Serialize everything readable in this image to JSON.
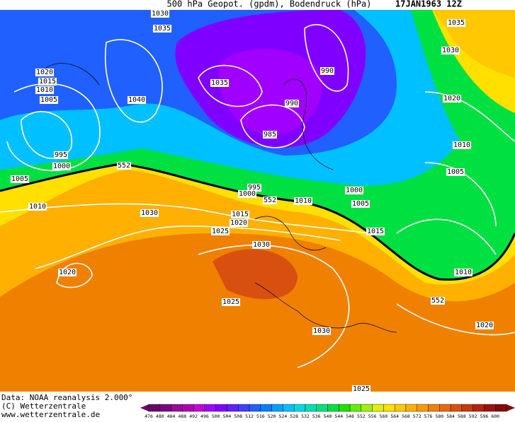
{
  "header": {
    "title": "500 hPa Geopot. (gpdm), Bodendruck (hPa)",
    "date": "17JAN1963 12Z"
  },
  "isobar_labels": [
    "1030",
    "1035",
    "1035",
    "1030",
    "990",
    "1020",
    "1015",
    "1010",
    "1005",
    "1040",
    "1035",
    "990",
    "985",
    "1020",
    "1010",
    "995",
    "1000",
    "552",
    "1005",
    "1005",
    "995",
    "1000",
    "1000",
    "552",
    "1010",
    "1005",
    "1010",
    "1030",
    "1015",
    "1020",
    "1025",
    "1015",
    "1030",
    "1020",
    "1010",
    "552",
    "1025",
    "1030",
    "1020",
    "1025"
  ],
  "footer": {
    "source": "Data: NOAA reanalysis 2.000°",
    "copyright": "(C) Wetterzentrale",
    "url": "www.wetterzentrale.de"
  },
  "colorbar": {
    "values": [
      476,
      480,
      484,
      488,
      492,
      496,
      500,
      504,
      508,
      512,
      516,
      520,
      524,
      528,
      532,
      536,
      540,
      544,
      548,
      552,
      556,
      560,
      564,
      568,
      572,
      576,
      580,
      584,
      588,
      592,
      596,
      600
    ],
    "colors": [
      "#6a006a",
      "#800080",
      "#9a0a9a",
      "#b000b0",
      "#c800d8",
      "#a000ff",
      "#8000ff",
      "#6020ff",
      "#4040ff",
      "#2060ff",
      "#0080ff",
      "#00a0ff",
      "#00c0ff",
      "#00d8e0",
      "#00e0b0",
      "#00e080",
      "#00e040",
      "#20e000",
      "#60f000",
      "#a0f000",
      "#e0f000",
      "#ffe000",
      "#ffc800",
      "#ffb000",
      "#ff9800",
      "#f08000",
      "#e86a10",
      "#d85010",
      "#c83810",
      "#b82010",
      "#a01010",
      "#880808"
    ]
  }
}
